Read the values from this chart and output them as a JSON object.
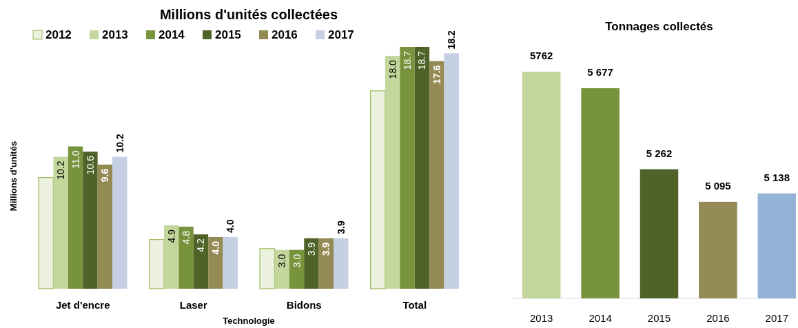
{
  "chart_data": [
    {
      "type": "bar",
      "title": "Millions d'unités collectées",
      "xlabel": "Technologie",
      "ylabel": "Millions d'unités",
      "categories": [
        "Jet d'encre",
        "Laser",
        "Bidons",
        "Total"
      ],
      "legend": "top",
      "series": [
        {
          "name": "2012",
          "color": "#ebf1de",
          "values": [
            8.6,
            3.8,
            3.1,
            15.3
          ]
        },
        {
          "name": "2013",
          "color": "#c3d69b",
          "values": [
            10.2,
            4.9,
            3.0,
            18.0
          ],
          "value_labels": [
            "10.2",
            "4.9",
            "3.0",
            "18.0"
          ]
        },
        {
          "name": "2014",
          "color": "#77933c",
          "values": [
            11.0,
            4.8,
            3.0,
            18.7
          ],
          "value_labels": [
            "11.0",
            "4.8",
            "3.0",
            "18.7"
          ]
        },
        {
          "name": "2015",
          "color": "#4f6228",
          "values": [
            10.6,
            4.2,
            3.9,
            18.7
          ],
          "value_labels": [
            "10.6",
            "4.2",
            "3.9",
            "18.7"
          ]
        },
        {
          "name": "2016",
          "color": "#948a54",
          "values": [
            9.6,
            4.0,
            3.9,
            17.6
          ],
          "value_labels": [
            "9.6",
            "4.0",
            "3.9",
            "17.6"
          ]
        },
        {
          "name": "2017",
          "color": "#c5d0e3",
          "values": [
            10.2,
            4.0,
            3.9,
            18.2
          ],
          "value_labels": [
            "10.2",
            "4.0",
            "3.9",
            "18.2"
          ]
        }
      ]
    },
    {
      "type": "bar",
      "title": "Tonnages collectés",
      "categories": [
        "2013",
        "2014",
        "2015",
        "2016",
        "2017"
      ],
      "ylim": [
        4600,
        5762
      ],
      "values": [
        5762,
        5677,
        5262,
        5095,
        5138
      ],
      "value_labels": [
        "5762",
        "5 677",
        "5 262",
        "5 095",
        "5 138"
      ],
      "colors": [
        "#c3d69b",
        "#77933c",
        "#4f6228",
        "#948a54",
        "#95b3d7"
      ]
    }
  ]
}
